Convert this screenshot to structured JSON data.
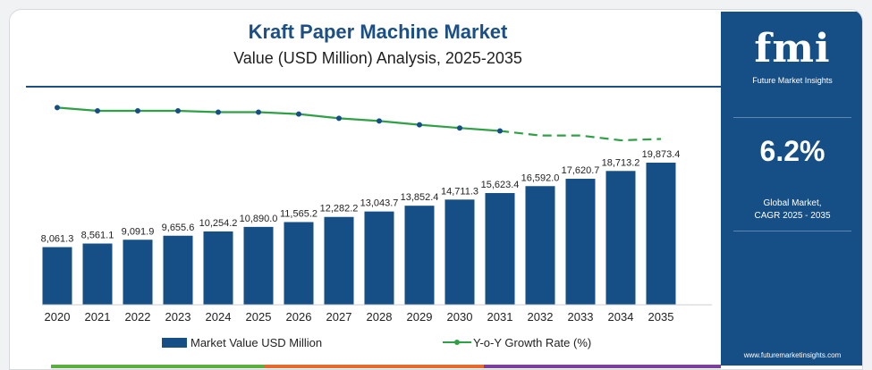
{
  "header": {
    "title": "Kraft Paper Machine Market",
    "subtitle": "Value (USD Million) Analysis, 2025-2035"
  },
  "chart_data": {
    "type": "bar",
    "title": "Kraft Paper Machine Market",
    "subtitle": "Value (USD Million) Analysis, 2025-2035",
    "categories": [
      "2020",
      "2021",
      "2022",
      "2023",
      "2024",
      "2025",
      "2026",
      "2027",
      "2028",
      "2029",
      "2030",
      "2031",
      "2032",
      "2033",
      "2034",
      "2035"
    ],
    "series": [
      {
        "name": "Market Value USD Million",
        "type": "bar",
        "color": "#154f86",
        "values": [
          8061.3,
          8561.1,
          9091.9,
          9655.6,
          10254.2,
          10890.0,
          11565.2,
          12282.2,
          13043.7,
          13852.4,
          14711.3,
          15623.4,
          16592.0,
          17620.7,
          18713.2,
          19873.4
        ],
        "labels": [
          "8,061.3",
          "8,561.1",
          "9,091.9",
          "9,655.6",
          "10,254.2",
          "10,890.0",
          "11,565.2",
          "12,282.2",
          "13,043.7",
          "13,852.4",
          "14,711.3",
          "15,623.4",
          "16,592.0",
          "17,620.7",
          "18,713.2",
          "19,873.4"
        ]
      },
      {
        "name": "Y-o-Y Growth Rate (%)",
        "type": "line",
        "color": "#2ea046",
        "values": [
          6.5,
          6.2,
          6.2,
          6.2,
          6.2,
          6.2,
          6.2,
          6.2,
          6.2,
          6.2,
          6.2,
          6.2,
          6.2,
          6.2,
          6.2,
          6.2
        ],
        "dashed_from_index": 11
      }
    ],
    "legend": {
      "position": "bottom",
      "items": [
        "Market Value USD Million",
        "Y-o-Y Growth Rate (%)"
      ]
    },
    "grid": false
  },
  "line_shape": [
    8.12,
    8.0,
    8.0,
    8.0,
    7.95,
    7.95,
    7.88,
    7.72,
    7.62,
    7.48,
    7.36,
    7.25,
    7.08,
    7.08,
    6.9,
    6.95
  ],
  "side_panel": {
    "logo_text": "fmi",
    "logo_subtitle": "Future Market Insights",
    "cagr_value": "6.2%",
    "cagr_label_line1": "Global Market,",
    "cagr_label_line2": "CAGR 2025 - 2035",
    "website": "www.futuremarketinsights.com"
  },
  "colors": {
    "brand_blue": "#154f86",
    "title_blue": "#1b4f86",
    "line_green": "#2ea046",
    "strip_green": "#5ab03c",
    "strip_orange": "#e8692c",
    "strip_purple": "#7b3fa0"
  }
}
